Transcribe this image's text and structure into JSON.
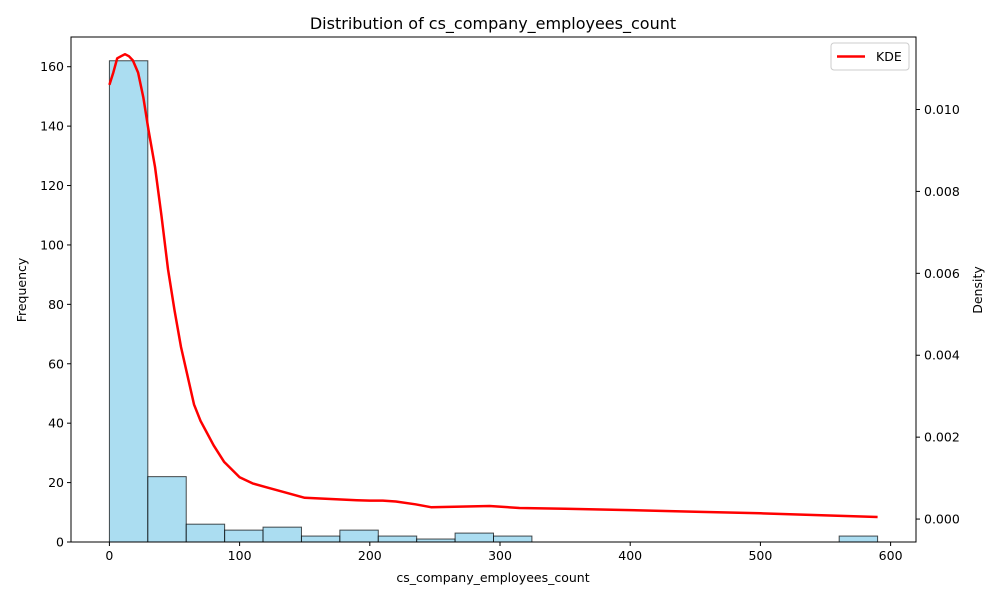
{
  "chart_data": {
    "type": "bar",
    "title": "Distribution of cs_company_employees_count",
    "xlabel": "cs_company_employees_count",
    "ylabel": "Frequency",
    "y2label": "Density",
    "xlim": [
      -29.5,
      619.5
    ],
    "ylim": [
      0,
      170
    ],
    "y2lim": [
      -0.00056,
      0.01177
    ],
    "xticks": [
      0,
      100,
      200,
      300,
      400,
      500,
      600
    ],
    "yticks": [
      0,
      20,
      40,
      60,
      80,
      100,
      120,
      140,
      160
    ],
    "y2ticks": [
      0.0,
      0.002,
      0.004,
      0.006,
      0.008,
      0.01
    ],
    "y2tick_labels": [
      "0.000",
      "0.002",
      "0.004",
      "0.006",
      "0.008",
      "0.010"
    ],
    "grid": false,
    "legend_position": "top-right",
    "histogram": {
      "bin_edges": [
        0,
        29.5,
        59,
        88.5,
        118,
        147.5,
        177,
        206.5,
        236,
        265.5,
        295,
        324.5,
        354,
        383.5,
        413,
        442.5,
        472,
        501.5,
        531,
        560.5,
        590
      ],
      "counts": [
        162,
        22,
        6,
        4,
        5,
        2,
        4,
        2,
        1,
        3,
        2,
        0,
        0,
        0,
        0,
        0,
        0,
        0,
        0,
        2
      ],
      "color": "#87CEEB",
      "edge_color": "#000000"
    },
    "kde": {
      "name": "KDE",
      "color": "#FF0000",
      "x": [
        0,
        3,
        6,
        9,
        12,
        15,
        18,
        22,
        26,
        30,
        35,
        40,
        45,
        50,
        55,
        60,
        65,
        70,
        75,
        80,
        88,
        100,
        110,
        120,
        135,
        150,
        170,
        190,
        200,
        210,
        220,
        235,
        247,
        265,
        292,
        315,
        350,
        400,
        450,
        500,
        550,
        590
      ],
      "y": [
        0.0106,
        0.0109,
        0.01125,
        0.0113,
        0.01135,
        0.0113,
        0.0112,
        0.0109,
        0.0103,
        0.0095,
        0.0086,
        0.0074,
        0.0061,
        0.0051,
        0.0042,
        0.0035,
        0.0028,
        0.0024,
        0.0021,
        0.0018,
        0.0014,
        0.00102,
        0.00087,
        0.00078,
        0.00065,
        0.00052,
        0.00049,
        0.00046,
        0.00045,
        0.00045,
        0.00043,
        0.00036,
        0.00029,
        0.0003,
        0.00032,
        0.00027,
        0.00025,
        0.00022,
        0.00018,
        0.00014,
        9e-05,
        5e-05
      ]
    }
  }
}
